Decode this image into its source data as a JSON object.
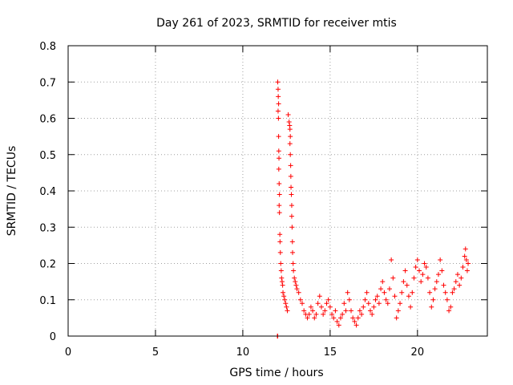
{
  "chart_data": {
    "type": "scatter",
    "title": "Day 261 of 2023, SRMTID for receiver mtis",
    "xlabel": "GPS time / hours",
    "ylabel": "SRMTID / TECUs",
    "xlim": [
      0,
      24
    ],
    "ylim": [
      0,
      0.8
    ],
    "xticks": [
      0,
      5,
      10,
      15,
      20
    ],
    "yticks": [
      0,
      0.1,
      0.2,
      0.3,
      0.4,
      0.5,
      0.6,
      0.7,
      0.8
    ],
    "xtick_labels": [
      "0",
      "5",
      "10",
      "15",
      "20"
    ],
    "ytick_labels": [
      "0",
      "0.1",
      "0.2",
      "0.3",
      "0.4",
      "0.5",
      "0.6",
      "0.7",
      "0.8"
    ],
    "grid": true,
    "marker": "+",
    "series": [
      {
        "name": "SRMTID",
        "color": "#ff0000",
        "points": [
          [
            11.98,
            0.0
          ],
          [
            12.0,
            0.0
          ],
          [
            12.0,
            0.7
          ],
          [
            12.02,
            0.68
          ],
          [
            12.03,
            0.66
          ],
          [
            12.05,
            0.64
          ],
          [
            12.02,
            0.62
          ],
          [
            12.04,
            0.6
          ],
          [
            12.05,
            0.55
          ],
          [
            12.06,
            0.51
          ],
          [
            12.07,
            0.49
          ],
          [
            12.06,
            0.46
          ],
          [
            12.08,
            0.42
          ],
          [
            12.1,
            0.39
          ],
          [
            12.08,
            0.36
          ],
          [
            12.1,
            0.34
          ],
          [
            12.12,
            0.28
          ],
          [
            12.13,
            0.26
          ],
          [
            12.15,
            0.23
          ],
          [
            12.17,
            0.2
          ],
          [
            12.2,
            0.18
          ],
          [
            12.22,
            0.16
          ],
          [
            12.25,
            0.15
          ],
          [
            12.28,
            0.14
          ],
          [
            12.3,
            0.12
          ],
          [
            12.35,
            0.11
          ],
          [
            12.4,
            0.1
          ],
          [
            12.45,
            0.09
          ],
          [
            12.5,
            0.08
          ],
          [
            12.55,
            0.07
          ],
          [
            12.6,
            0.61
          ],
          [
            12.65,
            0.59
          ],
          [
            12.68,
            0.58
          ],
          [
            12.7,
            0.57
          ],
          [
            12.72,
            0.55
          ],
          [
            12.7,
            0.53
          ],
          [
            12.72,
            0.5
          ],
          [
            12.74,
            0.47
          ],
          [
            12.75,
            0.44
          ],
          [
            12.76,
            0.41
          ],
          [
            12.78,
            0.39
          ],
          [
            12.8,
            0.36
          ],
          [
            12.8,
            0.33
          ],
          [
            12.82,
            0.3
          ],
          [
            12.84,
            0.26
          ],
          [
            12.85,
            0.23
          ],
          [
            12.88,
            0.2
          ],
          [
            12.9,
            0.18
          ],
          [
            12.95,
            0.16
          ],
          [
            13.0,
            0.15
          ],
          [
            13.05,
            0.14
          ],
          [
            13.1,
            0.13
          ],
          [
            13.2,
            0.12
          ],
          [
            13.3,
            0.1
          ],
          [
            13.4,
            0.09
          ],
          [
            13.5,
            0.07
          ],
          [
            13.6,
            0.06
          ],
          [
            13.7,
            0.05
          ],
          [
            13.8,
            0.06
          ],
          [
            13.9,
            0.08
          ],
          [
            14.0,
            0.07
          ],
          [
            14.1,
            0.05
          ],
          [
            14.2,
            0.06
          ],
          [
            14.3,
            0.09
          ],
          [
            14.4,
            0.11
          ],
          [
            14.5,
            0.08
          ],
          [
            14.6,
            0.06
          ],
          [
            14.7,
            0.07
          ],
          [
            14.8,
            0.09
          ],
          [
            14.9,
            0.1
          ],
          [
            15.0,
            0.08
          ],
          [
            15.1,
            0.06
          ],
          [
            15.2,
            0.05
          ],
          [
            15.3,
            0.07
          ],
          [
            15.4,
            0.04
          ],
          [
            15.5,
            0.03
          ],
          [
            15.6,
            0.05
          ],
          [
            15.7,
            0.06
          ],
          [
            15.8,
            0.09
          ],
          [
            15.9,
            0.07
          ],
          [
            16.0,
            0.12
          ],
          [
            16.1,
            0.1
          ],
          [
            16.2,
            0.07
          ],
          [
            16.3,
            0.05
          ],
          [
            16.4,
            0.04
          ],
          [
            16.5,
            0.03
          ],
          [
            16.6,
            0.05
          ],
          [
            16.7,
            0.07
          ],
          [
            16.8,
            0.06
          ],
          [
            16.9,
            0.08
          ],
          [
            17.0,
            0.1
          ],
          [
            17.1,
            0.12
          ],
          [
            17.2,
            0.09
          ],
          [
            17.3,
            0.07
          ],
          [
            17.4,
            0.06
          ],
          [
            17.5,
            0.08
          ],
          [
            17.6,
            0.1
          ],
          [
            17.7,
            0.11
          ],
          [
            17.8,
            0.09
          ],
          [
            17.9,
            0.13
          ],
          [
            18.0,
            0.15
          ],
          [
            18.1,
            0.12
          ],
          [
            18.2,
            0.1
          ],
          [
            18.3,
            0.09
          ],
          [
            18.4,
            0.13
          ],
          [
            18.5,
            0.21
          ],
          [
            18.6,
            0.16
          ],
          [
            18.7,
            0.11
          ],
          [
            18.8,
            0.05
          ],
          [
            18.9,
            0.07
          ],
          [
            19.0,
            0.09
          ],
          [
            19.1,
            0.12
          ],
          [
            19.2,
            0.15
          ],
          [
            19.3,
            0.18
          ],
          [
            19.4,
            0.14
          ],
          [
            19.5,
            0.11
          ],
          [
            19.6,
            0.08
          ],
          [
            19.7,
            0.12
          ],
          [
            19.8,
            0.16
          ],
          [
            19.9,
            0.19
          ],
          [
            20.0,
            0.21
          ],
          [
            20.1,
            0.18
          ],
          [
            20.2,
            0.15
          ],
          [
            20.3,
            0.17
          ],
          [
            20.4,
            0.2
          ],
          [
            20.5,
            0.19
          ],
          [
            20.6,
            0.16
          ],
          [
            20.7,
            0.12
          ],
          [
            20.8,
            0.08
          ],
          [
            20.9,
            0.1
          ],
          [
            21.0,
            0.13
          ],
          [
            21.1,
            0.15
          ],
          [
            21.2,
            0.17
          ],
          [
            21.3,
            0.21
          ],
          [
            21.4,
            0.18
          ],
          [
            21.5,
            0.14
          ],
          [
            21.6,
            0.12
          ],
          [
            21.7,
            0.1
          ],
          [
            21.8,
            0.07
          ],
          [
            21.9,
            0.08
          ],
          [
            22.0,
            0.12
          ],
          [
            22.1,
            0.13
          ],
          [
            22.2,
            0.15
          ],
          [
            22.3,
            0.17
          ],
          [
            22.4,
            0.14
          ],
          [
            22.5,
            0.16
          ],
          [
            22.6,
            0.19
          ],
          [
            22.7,
            0.22
          ],
          [
            22.75,
            0.24
          ],
          [
            22.8,
            0.21
          ],
          [
            22.85,
            0.18
          ],
          [
            22.9,
            0.2
          ]
        ]
      }
    ]
  },
  "colors": {
    "axis": "#000000",
    "grid": "#a0a0a0",
    "marker": "#ff0000",
    "background": "#ffffff"
  }
}
